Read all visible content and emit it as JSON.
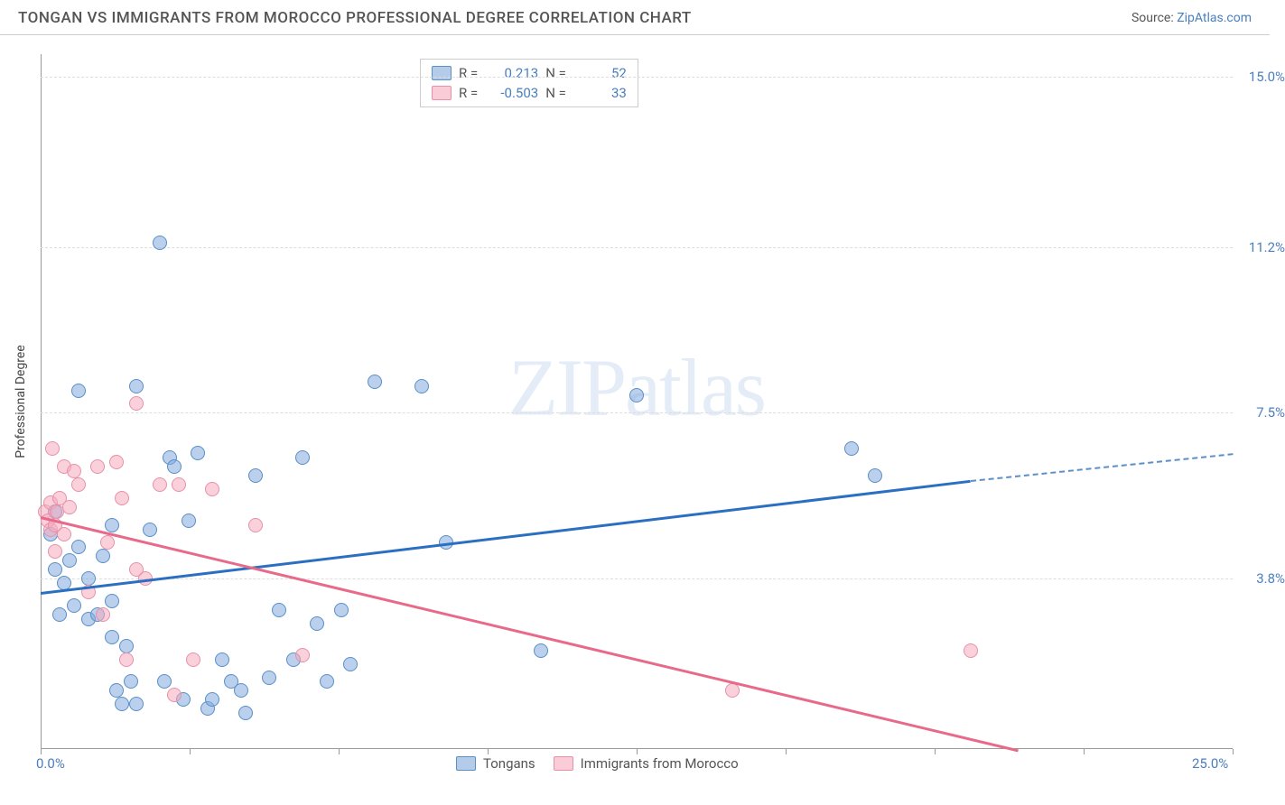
{
  "header": {
    "title": "TONGAN VS IMMIGRANTS FROM MOROCCO PROFESSIONAL DEGREE CORRELATION CHART",
    "source_prefix": "Source: ",
    "source_link": "ZipAtlas.com"
  },
  "watermark": {
    "bold": "ZIP",
    "light": "atlas"
  },
  "chart": {
    "type": "scatter",
    "ylabel": "Professional Degree",
    "xlim": [
      0,
      25
    ],
    "ylim": [
      0,
      15.5
    ],
    "xticks": [
      0,
      3.125,
      6.25,
      9.375,
      12.5,
      15.625,
      18.75,
      21.875,
      25
    ],
    "xtick_labels": {
      "0": "0.0%",
      "25": "25.0%"
    },
    "yticks": [
      3.8,
      7.5,
      11.2,
      15.0
    ],
    "ytick_labels": [
      "3.8%",
      "7.5%",
      "11.2%",
      "15.0%"
    ],
    "grid_color": "#dddddd",
    "background_color": "#ffffff",
    "series": [
      {
        "name": "Tongans",
        "key": "blue",
        "marker_color_fill": "rgba(130,170,220,0.55)",
        "marker_color_stroke": "#5a8fc8",
        "marker_size": 16,
        "trend": {
          "x0": 0,
          "y0": 3.5,
          "x1": 19.5,
          "y1": 6.0,
          "color": "#2b6fc2",
          "dash_from_x": 19.5,
          "dash_to_x": 25,
          "dash_to_y": 6.6
        },
        "R": "0.213",
        "N": "52",
        "points": [
          [
            0.2,
            4.8
          ],
          [
            0.3,
            5.3
          ],
          [
            0.3,
            4.0
          ],
          [
            0.4,
            3.0
          ],
          [
            0.5,
            3.7
          ],
          [
            0.6,
            4.2
          ],
          [
            0.7,
            3.2
          ],
          [
            0.8,
            4.5
          ],
          [
            0.8,
            8.0
          ],
          [
            1.0,
            3.8
          ],
          [
            1.0,
            2.9
          ],
          [
            1.2,
            3.0
          ],
          [
            1.3,
            4.3
          ],
          [
            1.5,
            2.5
          ],
          [
            1.5,
            3.3
          ],
          [
            1.5,
            5.0
          ],
          [
            1.6,
            1.3
          ],
          [
            1.7,
            1.0
          ],
          [
            1.8,
            2.3
          ],
          [
            1.9,
            1.5
          ],
          [
            2.0,
            1.0
          ],
          [
            2.0,
            8.1
          ],
          [
            2.3,
            4.9
          ],
          [
            2.5,
            11.3
          ],
          [
            2.6,
            1.5
          ],
          [
            2.7,
            6.5
          ],
          [
            2.8,
            6.3
          ],
          [
            3.0,
            1.1
          ],
          [
            3.1,
            5.1
          ],
          [
            3.3,
            6.6
          ],
          [
            3.5,
            0.9
          ],
          [
            3.6,
            1.1
          ],
          [
            3.8,
            2.0
          ],
          [
            4.0,
            1.5
          ],
          [
            4.2,
            1.3
          ],
          [
            4.3,
            0.8
          ],
          [
            4.5,
            6.1
          ],
          [
            4.8,
            1.6
          ],
          [
            5.0,
            3.1
          ],
          [
            5.3,
            2.0
          ],
          [
            5.5,
            6.5
          ],
          [
            6.0,
            1.5
          ],
          [
            6.3,
            3.1
          ],
          [
            6.5,
            1.9
          ],
          [
            7.0,
            8.2
          ],
          [
            8.0,
            8.1
          ],
          [
            8.5,
            4.6
          ],
          [
            10.5,
            2.2
          ],
          [
            12.5,
            7.9
          ],
          [
            17.0,
            6.7
          ],
          [
            17.5,
            6.1
          ],
          [
            5.8,
            2.8
          ]
        ]
      },
      {
        "name": "Immigrants from Morocco",
        "key": "pink",
        "marker_color_fill": "rgba(245,170,190,0.55)",
        "marker_color_stroke": "#e890a8",
        "marker_size": 16,
        "trend": {
          "x0": 0,
          "y0": 5.2,
          "x1": 20.5,
          "y1": 0.0,
          "color": "#e86a8a"
        },
        "R": "-0.503",
        "N": "33",
        "points": [
          [
            0.1,
            5.3
          ],
          [
            0.15,
            5.1
          ],
          [
            0.2,
            5.5
          ],
          [
            0.2,
            4.9
          ],
          [
            0.25,
            6.7
          ],
          [
            0.3,
            5.0
          ],
          [
            0.3,
            4.4
          ],
          [
            0.35,
            5.3
          ],
          [
            0.4,
            5.6
          ],
          [
            0.5,
            6.3
          ],
          [
            0.5,
            4.8
          ],
          [
            0.6,
            5.4
          ],
          [
            0.7,
            6.2
          ],
          [
            0.8,
            5.9
          ],
          [
            1.0,
            3.5
          ],
          [
            1.2,
            6.3
          ],
          [
            1.3,
            3.0
          ],
          [
            1.4,
            4.6
          ],
          [
            1.6,
            6.4
          ],
          [
            1.7,
            5.6
          ],
          [
            1.8,
            2.0
          ],
          [
            2.0,
            7.7
          ],
          [
            2.0,
            4.0
          ],
          [
            2.2,
            3.8
          ],
          [
            2.5,
            5.9
          ],
          [
            2.8,
            1.2
          ],
          [
            2.9,
            5.9
          ],
          [
            3.2,
            2.0
          ],
          [
            3.6,
            5.8
          ],
          [
            4.5,
            5.0
          ],
          [
            5.5,
            2.1
          ],
          [
            14.5,
            1.3
          ],
          [
            19.5,
            2.2
          ]
        ]
      }
    ],
    "legend_top": {
      "rows": [
        {
          "swatch": "blue",
          "r_label": "R =",
          "r_value": "0.213",
          "n_label": "N =",
          "n_value": "52"
        },
        {
          "swatch": "pink",
          "r_label": "R =",
          "r_value": "-0.503",
          "n_label": "N =",
          "n_value": "33"
        }
      ]
    },
    "legend_bottom": [
      {
        "swatch": "blue",
        "label": "Tongans"
      },
      {
        "swatch": "pink",
        "label": "Immigrants from Morocco"
      }
    ]
  }
}
